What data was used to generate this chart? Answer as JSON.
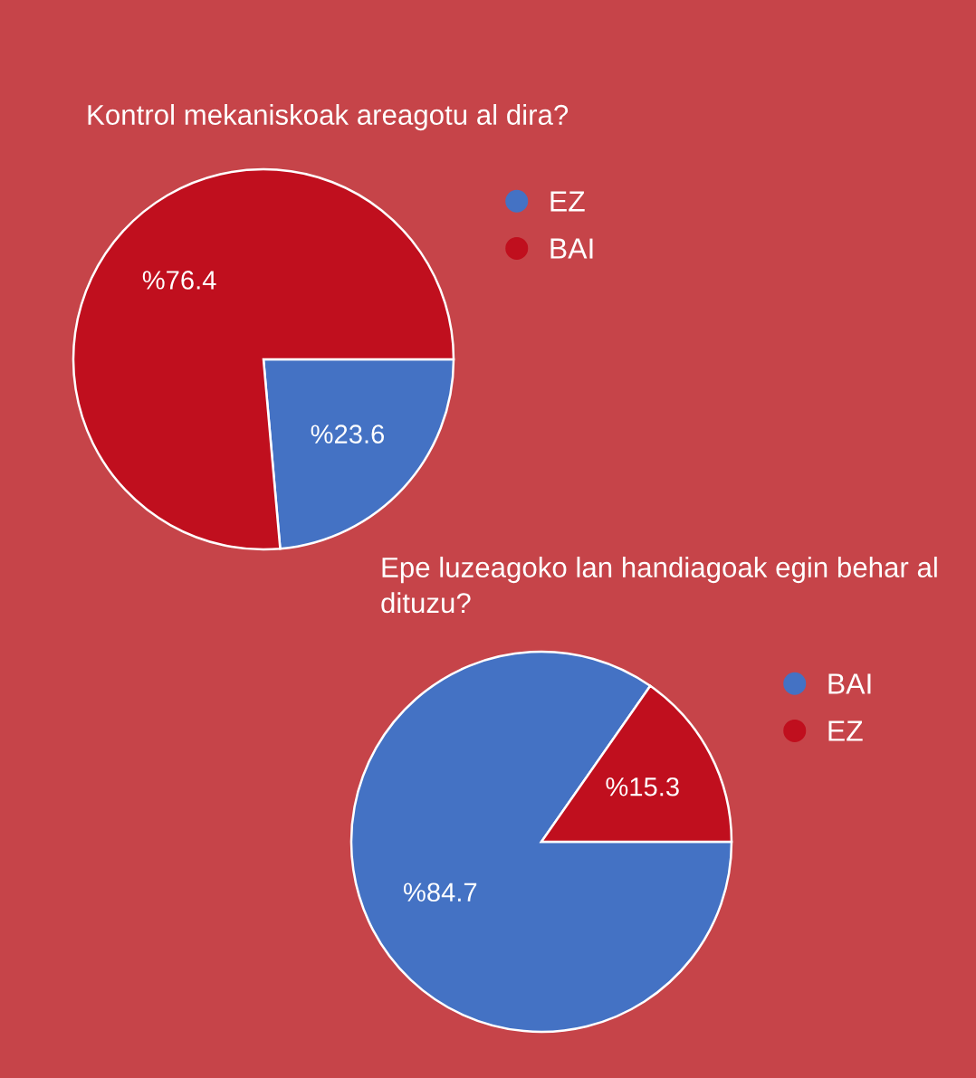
{
  "chart_data": [
    {
      "type": "pie",
      "title": "Kontrol mekaniskoak areagotu al dira?",
      "categories": [
        "EZ",
        "BAI"
      ],
      "values": [
        23.6,
        76.4
      ],
      "colors": [
        "#4472c4",
        "#c00f1e"
      ],
      "value_labels": [
        "%23.6",
        "%76.4"
      ],
      "legend": "top right"
    },
    {
      "type": "pie",
      "title": "Epe luzeagoko lan handiagoak egin behar al dituzu?",
      "categories": [
        "BAI",
        "EZ"
      ],
      "values": [
        84.7,
        15.3
      ],
      "colors": [
        "#4472c4",
        "#c00f1e"
      ],
      "value_labels": [
        "%84.7",
        "%15.3"
      ],
      "legend": "top right"
    }
  ]
}
